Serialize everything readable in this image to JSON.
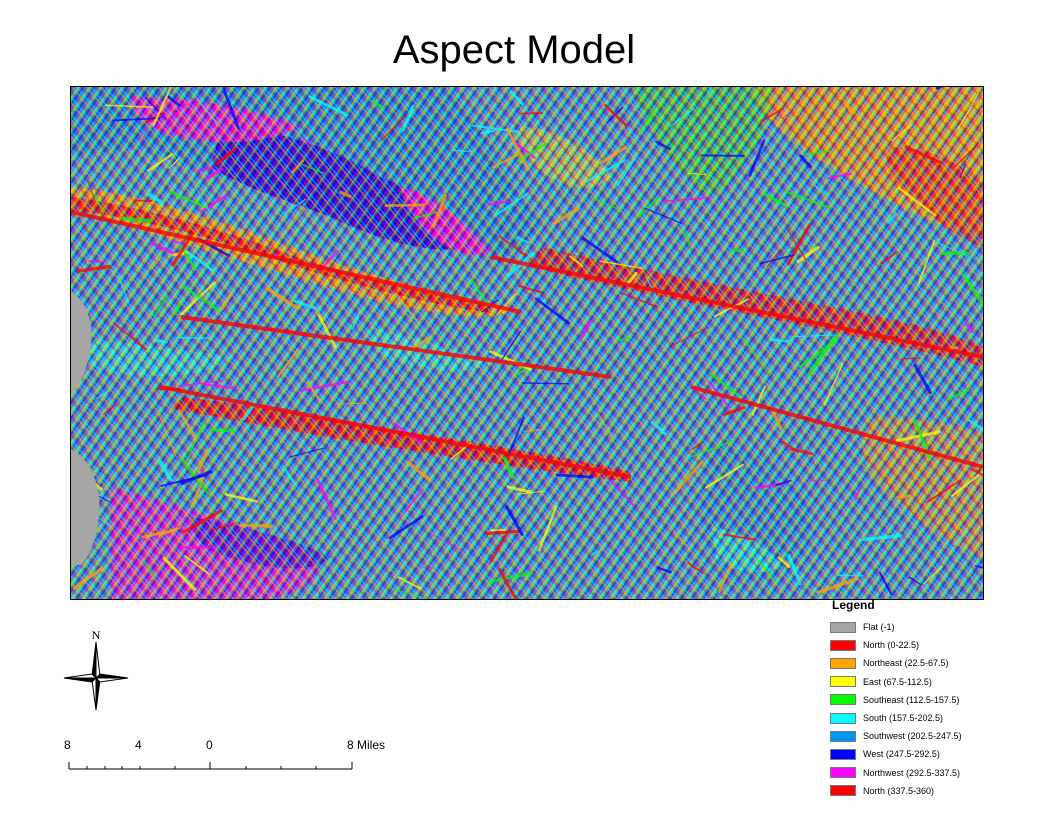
{
  "title": "Aspect Model",
  "map": {
    "palette": {
      "flat": "#a6a6a6",
      "north": "#ff0000",
      "northeast": "#ffa500",
      "east": "#ffff00",
      "southeast": "#00ff00",
      "south": "#00ffff",
      "southwest": "#0096f0",
      "west": "#0000ff",
      "northwest": "#ff00ff"
    }
  },
  "legend": {
    "title": "Legend",
    "items": [
      {
        "label": "Flat (-1)",
        "color": "#a6a6a6"
      },
      {
        "label": "North (0-22.5)",
        "color": "#ff0000"
      },
      {
        "label": "Northeast (22.5-67.5)",
        "color": "#ffa500"
      },
      {
        "label": "East (67.5-112.5)",
        "color": "#ffff00"
      },
      {
        "label": "Southeast (112.5-157.5)",
        "color": "#00ff00"
      },
      {
        "label": "South (157.5-202.5)",
        "color": "#00ffff"
      },
      {
        "label": "Southwest (202.5-247.5)",
        "color": "#0096f0"
      },
      {
        "label": "West (247.5-292.5)",
        "color": "#0000ff"
      },
      {
        "label": "Northwest (292.5-337.5)",
        "color": "#ff00ff"
      },
      {
        "label": "North (337.5-360)",
        "color": "#ff0000"
      }
    ]
  },
  "north_arrow": {
    "label": "N"
  },
  "scale_bar": {
    "labels": [
      "8",
      "4",
      "0",
      "8 Miles"
    ]
  }
}
